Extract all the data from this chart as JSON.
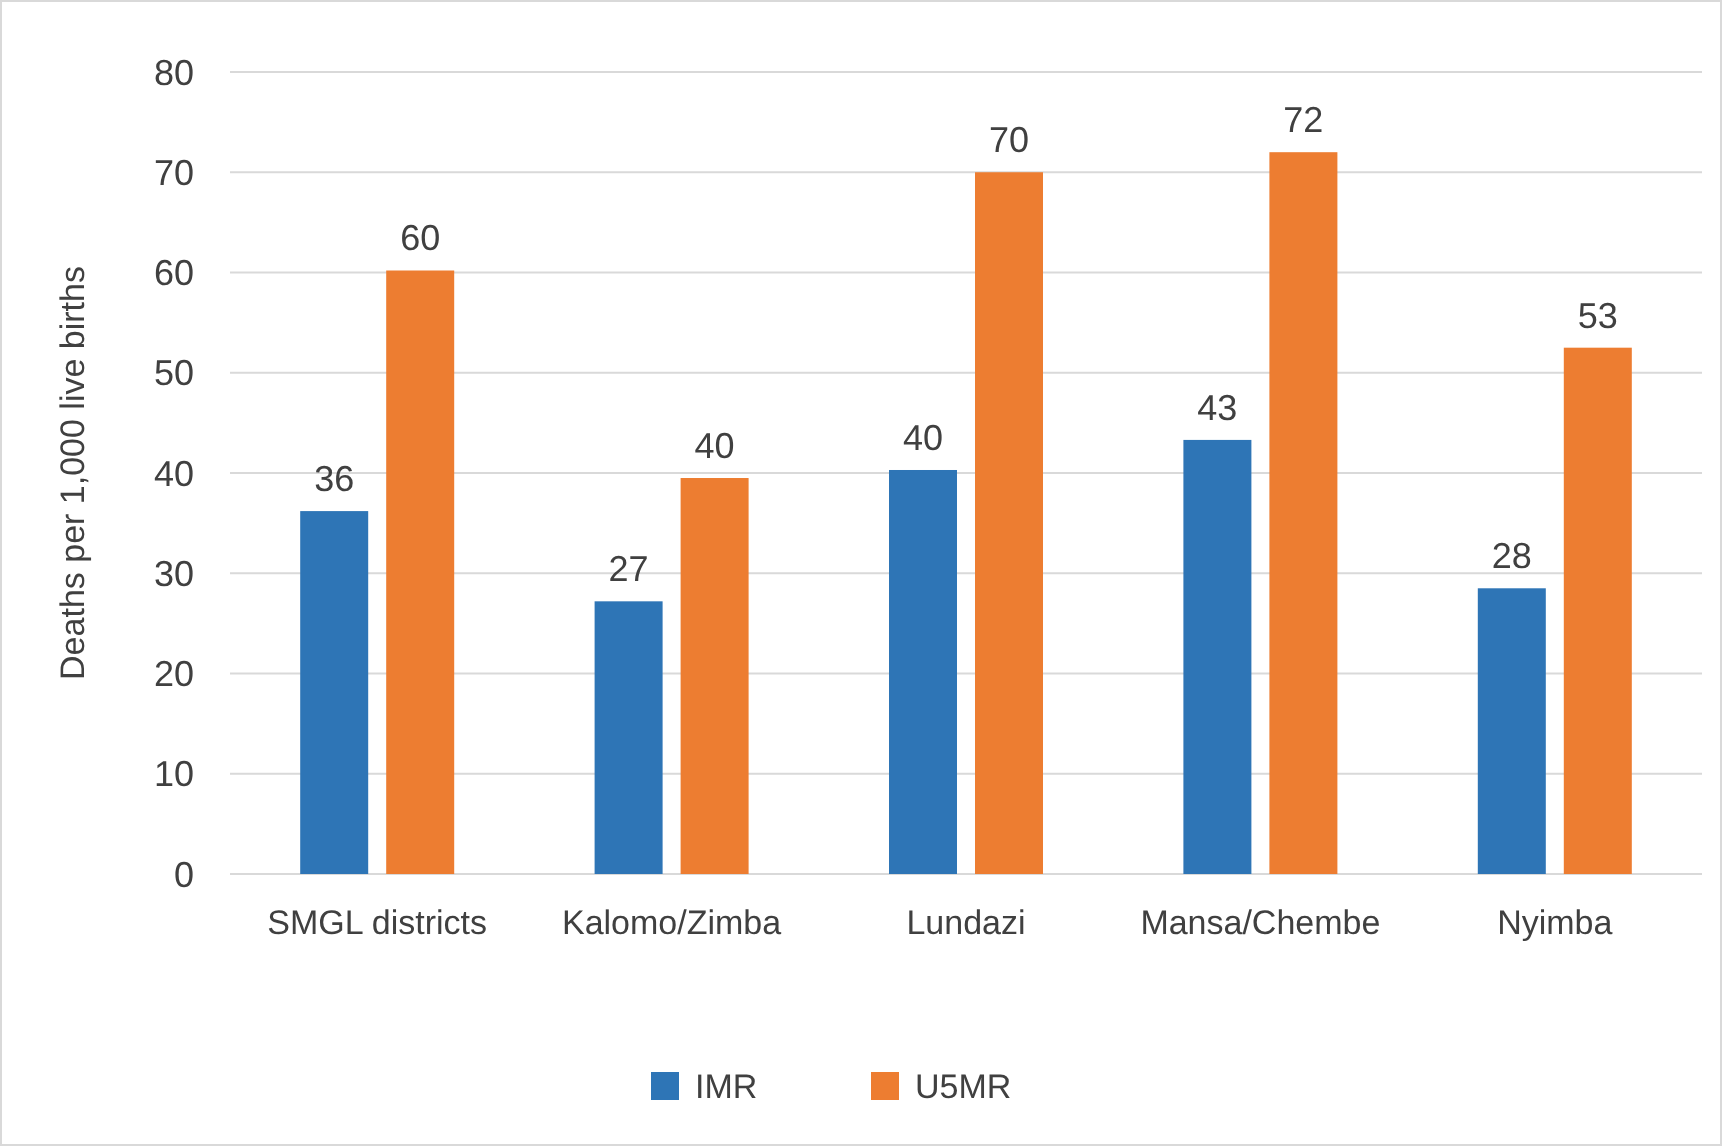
{
  "chart_data": {
    "type": "bar",
    "ylabel": "Deaths per 1,000 live births",
    "categories": [
      "SMGL districts",
      "Kalomo/Zimba",
      "Lundazi",
      "Mansa/Chembe",
      "Nyimba"
    ],
    "series": [
      {
        "name": "IMR",
        "color": "#2e75b6",
        "values": [
          36.2,
          27.2,
          40.3,
          43.3,
          28.5
        ],
        "value_labels": [
          "36",
          "27",
          "40",
          "43",
          "28"
        ]
      },
      {
        "name": "U5MR",
        "color": "#ed7d31",
        "values": [
          60.2,
          39.5,
          70,
          72,
          52.5
        ],
        "value_labels": [
          "60",
          "40",
          "70",
          "72",
          "53"
        ]
      }
    ],
    "ylim": [
      0,
      80
    ],
    "yticks": [
      0,
      10,
      20,
      30,
      40,
      50,
      60,
      70,
      80
    ],
    "grid": "y",
    "legend": "bottom"
  }
}
